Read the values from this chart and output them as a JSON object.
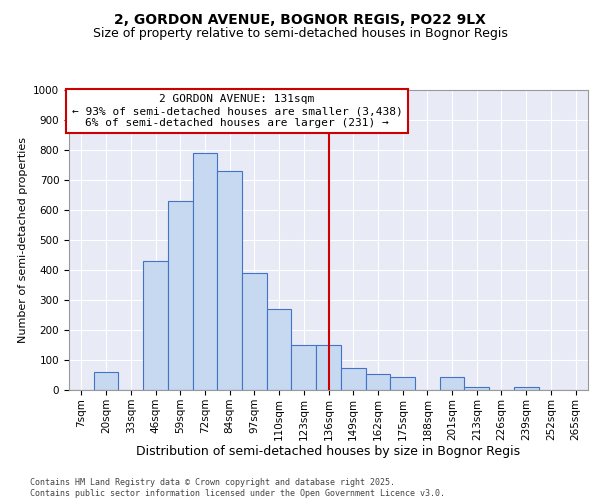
{
  "title_line1": "2, GORDON AVENUE, BOGNOR REGIS, PO22 9LX",
  "title_line2": "Size of property relative to semi-detached houses in Bognor Regis",
  "xlabel": "Distribution of semi-detached houses by size in Bognor Regis",
  "ylabel": "Number of semi-detached properties",
  "bin_labels": [
    "7sqm",
    "20sqm",
    "33sqm",
    "46sqm",
    "59sqm",
    "72sqm",
    "84sqm",
    "97sqm",
    "110sqm",
    "123sqm",
    "136sqm",
    "149sqm",
    "162sqm",
    "175sqm",
    "188sqm",
    "201sqm",
    "213sqm",
    "226sqm",
    "239sqm",
    "252sqm",
    "265sqm"
  ],
  "bar_heights": [
    0,
    60,
    0,
    430,
    630,
    790,
    730,
    390,
    270,
    150,
    150,
    75,
    55,
    45,
    0,
    45,
    10,
    0,
    10,
    0,
    0
  ],
  "bar_color": "#c6d9f0",
  "bar_edge_color": "#4472c4",
  "vline_x_index": 10,
  "vline_color": "#cc0000",
  "annotation_text": "2 GORDON AVENUE: 131sqm\n← 93% of semi-detached houses are smaller (3,438)\n6% of semi-detached houses are larger (231) →",
  "annotation_box_color": "#cc0000",
  "ylim": [
    0,
    1000
  ],
  "yticks": [
    0,
    100,
    200,
    300,
    400,
    500,
    600,
    700,
    800,
    900,
    1000
  ],
  "background_color": "#e8eaf6",
  "grid_color": "#ffffff",
  "footer_text": "Contains HM Land Registry data © Crown copyright and database right 2025.\nContains public sector information licensed under the Open Government Licence v3.0.",
  "title_fontsize": 10,
  "subtitle_fontsize": 9,
  "xlabel_fontsize": 9,
  "ylabel_fontsize": 8,
  "tick_fontsize": 7.5,
  "annotation_fontsize": 8,
  "footer_fontsize": 6
}
